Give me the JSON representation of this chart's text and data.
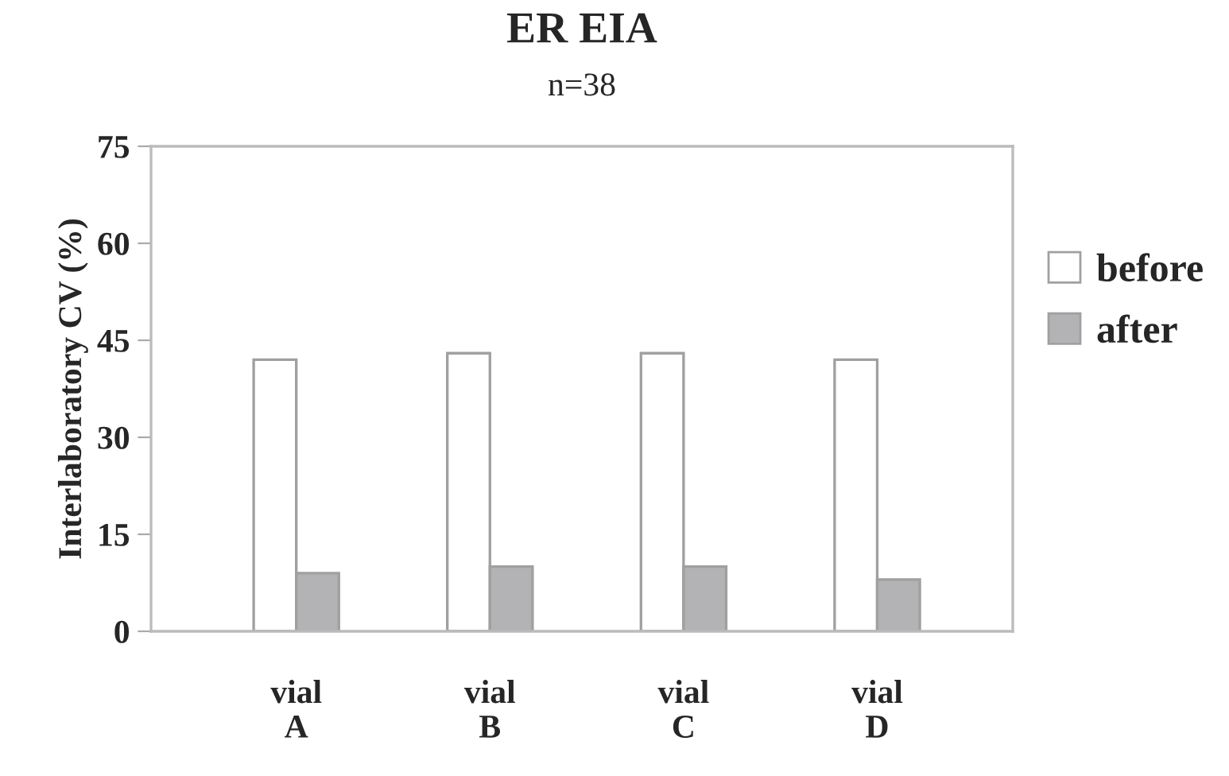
{
  "chart_data": {
    "type": "bar",
    "title": "ER EIA",
    "subtitle": "n=38",
    "ylabel": "Interlaboratory CV (%)",
    "categories": [
      "vial\nA",
      "vial\nB",
      "vial\nC",
      "vial\nD"
    ],
    "series": [
      {
        "name": "before",
        "color": "#ffffff",
        "values": [
          42,
          43,
          43,
          42
        ]
      },
      {
        "name": "after",
        "color": "#b3b3b5",
        "values": [
          9,
          10,
          10,
          8
        ]
      }
    ],
    "ylim": [
      0,
      75
    ],
    "yticks": [
      0,
      15,
      30,
      45,
      60,
      75
    ],
    "grid": false,
    "legend": "right"
  }
}
